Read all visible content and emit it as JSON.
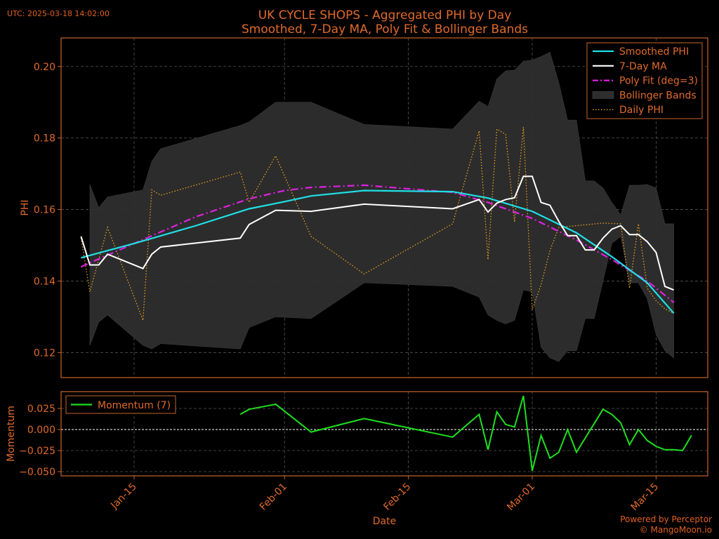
{
  "header": {
    "utc_label": "UTC: 2025-03-18 14:02:00",
    "title_line1": "UK CYCLE SHOPS - Aggregated PHI by Day",
    "title_line2": "Smoothed, 7-Day MA, Poly Fit & Bollinger Bands"
  },
  "footer": {
    "line1": "Powered by Perceptor",
    "line2": "© MangoMoon.io"
  },
  "colors": {
    "background": "#000000",
    "text": "#e06a2c",
    "axes": "#c8642a",
    "smoothed": "#1fe0e6",
    "ma": "#ffffff",
    "poly": "#e020e0",
    "band": "#2e2e2e",
    "daily": "#e8a020",
    "momentum": "#1ee01e"
  },
  "chart_data": [
    {
      "type": "line",
      "ylabel": "PHI",
      "ylim": [
        0.113,
        0.208
      ],
      "yticks": [
        "0.12",
        "0.14",
        "0.16",
        "0.18",
        "0.20"
      ],
      "grid": true,
      "legend_position": "top-right",
      "series": [
        {
          "name": "Smoothed PHI",
          "points": [
            [
              "2025-01-09",
              0.1465
            ],
            [
              "2025-01-15",
              0.1505
            ],
            [
              "2025-01-22",
              0.1555
            ],
            [
              "2025-01-28",
              0.1602
            ],
            [
              "2025-02-01",
              0.1622
            ],
            [
              "2025-02-04",
              0.1638
            ],
            [
              "2025-02-10",
              0.1653
            ],
            [
              "2025-02-20",
              0.165
            ],
            [
              "2025-02-24",
              0.1632
            ],
            [
              "2025-03-01",
              0.1595
            ],
            [
              "2025-03-06",
              0.1535
            ],
            [
              "2025-03-10",
              0.1468
            ],
            [
              "2025-03-14",
              0.1395
            ],
            [
              "2025-03-17",
              0.131
            ]
          ]
        },
        {
          "name": "7-Day MA",
          "points": [
            [
              "2025-01-09",
              0.1525
            ],
            [
              "2025-01-10",
              0.1445
            ],
            [
              "2025-01-11",
              0.1445
            ],
            [
              "2025-01-12",
              0.1475
            ],
            [
              "2025-01-16",
              0.1435
            ],
            [
              "2025-01-17",
              0.1475
            ],
            [
              "2025-01-18",
              0.1495
            ],
            [
              "2025-01-27",
              0.152
            ],
            [
              "2025-01-28",
              0.1558
            ],
            [
              "2025-01-31",
              0.1598
            ],
            [
              "2025-02-04",
              0.1595
            ],
            [
              "2025-02-10",
              0.1615
            ],
            [
              "2025-02-20",
              0.1602
            ],
            [
              "2025-02-23",
              0.1628
            ],
            [
              "2025-02-24",
              0.1593
            ],
            [
              "2025-02-25",
              0.1618
            ],
            [
              "2025-02-26",
              0.1628
            ],
            [
              "2025-02-27",
              0.1633
            ],
            [
              "2025-02-28",
              0.1693
            ],
            [
              "2025-03-01",
              0.1693
            ],
            [
              "2025-03-02",
              0.162
            ],
            [
              "2025-03-03",
              0.1612
            ],
            [
              "2025-03-04",
              0.1567
            ],
            [
              "2025-03-05",
              0.1527
            ],
            [
              "2025-03-06",
              0.1527
            ],
            [
              "2025-03-07",
              0.1487
            ],
            [
              "2025-03-08",
              0.1487
            ],
            [
              "2025-03-09",
              0.152
            ],
            [
              "2025-03-10",
              0.1545
            ],
            [
              "2025-03-11",
              0.1555
            ],
            [
              "2025-03-12",
              0.153
            ],
            [
              "2025-03-13",
              0.153
            ],
            [
              "2025-03-14",
              0.151
            ],
            [
              "2025-03-15",
              0.148
            ],
            [
              "2025-03-16",
              0.1385
            ],
            [
              "2025-03-17",
              0.1375
            ]
          ]
        },
        {
          "name": "Poly Fit (deg=3)",
          "points": [
            [
              "2025-01-09",
              0.144
            ],
            [
              "2025-01-15",
              0.1505
            ],
            [
              "2025-01-22",
              0.158
            ],
            [
              "2025-01-28",
              0.163
            ],
            [
              "2025-02-01",
              0.1653
            ],
            [
              "2025-02-04",
              0.1662
            ],
            [
              "2025-02-10",
              0.1668
            ],
            [
              "2025-02-20",
              0.1648
            ],
            [
              "2025-02-24",
              0.162
            ],
            [
              "2025-03-01",
              0.1575
            ],
            [
              "2025-03-06",
              0.1515
            ],
            [
              "2025-03-10",
              0.146
            ],
            [
              "2025-03-14",
              0.14
            ],
            [
              "2025-03-17",
              0.134
            ]
          ]
        },
        {
          "name": "Bollinger Bands",
          "upper": [
            [
              "2025-01-10",
              0.167
            ],
            [
              "2025-01-11",
              0.1605
            ],
            [
              "2025-01-12",
              0.1635
            ],
            [
              "2025-01-16",
              0.1655
            ],
            [
              "2025-01-17",
              0.1735
            ],
            [
              "2025-01-18",
              0.177
            ],
            [
              "2025-01-27",
              0.1835
            ],
            [
              "2025-01-28",
              0.1845
            ],
            [
              "2025-01-31",
              0.19
            ],
            [
              "2025-02-04",
              0.19
            ],
            [
              "2025-02-10",
              0.1838
            ],
            [
              "2025-02-20",
              0.1825
            ],
            [
              "2025-02-23",
              0.1903
            ],
            [
              "2025-02-24",
              0.1888
            ],
            [
              "2025-02-25",
              0.1965
            ],
            [
              "2025-02-26",
              0.1988
            ],
            [
              "2025-02-27",
              0.199
            ],
            [
              "2025-02-28",
              0.2015
            ],
            [
              "2025-03-01",
              0.2018
            ],
            [
              "2025-03-02",
              0.2028
            ],
            [
              "2025-03-03",
              0.204
            ],
            [
              "2025-03-04",
              0.1955
            ],
            [
              "2025-03-05",
              0.185
            ],
            [
              "2025-03-06",
              0.185
            ],
            [
              "2025-03-07",
              0.168
            ],
            [
              "2025-03-08",
              0.168
            ],
            [
              "2025-03-09",
              0.166
            ],
            [
              "2025-03-10",
              0.162
            ],
            [
              "2025-03-11",
              0.1585
            ],
            [
              "2025-03-12",
              0.1668
            ],
            [
              "2025-03-13",
              0.1668
            ],
            [
              "2025-03-14",
              0.167
            ],
            [
              "2025-03-15",
              0.166
            ],
            [
              "2025-03-16",
              0.156
            ],
            [
              "2025-03-17",
              0.156
            ]
          ],
          "lower": [
            [
              "2025-01-10",
              0.122
            ],
            [
              "2025-01-11",
              0.1285
            ],
            [
              "2025-01-12",
              0.1305
            ],
            [
              "2025-01-16",
              0.122
            ],
            [
              "2025-01-17",
              0.121
            ],
            [
              "2025-01-18",
              0.1225
            ],
            [
              "2025-01-27",
              0.121
            ],
            [
              "2025-01-28",
              0.127
            ],
            [
              "2025-01-31",
              0.13
            ],
            [
              "2025-02-04",
              0.1295
            ],
            [
              "2025-02-10",
              0.1395
            ],
            [
              "2025-02-20",
              0.1385
            ],
            [
              "2025-02-23",
              0.1355
            ],
            [
              "2025-02-24",
              0.1305
            ],
            [
              "2025-02-25",
              0.129
            ],
            [
              "2025-02-26",
              0.128
            ],
            [
              "2025-02-27",
              0.129
            ],
            [
              "2025-02-28",
              0.1375
            ],
            [
              "2025-03-01",
              0.137
            ],
            [
              "2025-03-02",
              0.1215
            ],
            [
              "2025-03-03",
              0.1185
            ],
            [
              "2025-03-04",
              0.1175
            ],
            [
              "2025-03-05",
              0.1205
            ],
            [
              "2025-03-06",
              0.1205
            ],
            [
              "2025-03-07",
              0.1295
            ],
            [
              "2025-03-08",
              0.1295
            ],
            [
              "2025-03-09",
              0.14
            ],
            [
              "2025-03-10",
              0.1505
            ],
            [
              "2025-03-11",
              0.1525
            ],
            [
              "2025-03-12",
              0.1395
            ],
            [
              "2025-03-13",
              0.1395
            ],
            [
              "2025-03-14",
              0.135
            ],
            [
              "2025-03-15",
              0.125
            ],
            [
              "2025-03-16",
              0.1205
            ],
            [
              "2025-03-17",
              0.1185
            ]
          ]
        },
        {
          "name": "Daily PHI",
          "points": [
            [
              "2025-01-09",
              0.152
            ],
            [
              "2025-01-10",
              0.137
            ],
            [
              "2025-01-12",
              0.155
            ],
            [
              "2025-01-16",
              0.129
            ],
            [
              "2025-01-17",
              0.1655
            ],
            [
              "2025-01-18",
              0.164
            ],
            [
              "2025-01-27",
              0.1705
            ],
            [
              "2025-01-28",
              0.162
            ],
            [
              "2025-01-31",
              0.175
            ],
            [
              "2025-02-04",
              0.1525
            ],
            [
              "2025-02-10",
              0.142
            ],
            [
              "2025-02-20",
              0.156
            ],
            [
              "2025-02-23",
              0.182
            ],
            [
              "2025-02-24",
              0.146
            ],
            [
              "2025-02-25",
              0.1825
            ],
            [
              "2025-02-26",
              0.181
            ],
            [
              "2025-02-27",
              0.1565
            ],
            [
              "2025-02-28",
              0.183
            ],
            [
              "2025-03-01",
              0.132
            ],
            [
              "2025-03-02",
              0.139
            ],
            [
              "2025-03-03",
              0.1485
            ],
            [
              "2025-03-04",
              0.155
            ],
            [
              "2025-03-06",
              0.1555
            ],
            [
              "2025-03-09",
              0.1562
            ],
            [
              "2025-03-11",
              0.156
            ],
            [
              "2025-03-12",
              0.138
            ],
            [
              "2025-03-13",
              0.156
            ],
            [
              "2025-03-14",
              0.138
            ],
            [
              "2025-03-15",
              0.1345
            ],
            [
              "2025-03-16",
              0.1322
            ],
            [
              "2025-03-17",
              0.131
            ]
          ]
        }
      ]
    },
    {
      "type": "line",
      "xlabel": "Date",
      "ylabel": "Momentum",
      "ylim": [
        -0.055,
        0.045
      ],
      "yticks": [
        "0.025",
        "0.000",
        "−0.025",
        "−0.050"
      ],
      "zero_line": true,
      "grid": true,
      "legend_position": "top-left",
      "xticks": [
        {
          "date": "2025-01-15",
          "label": "Jan-15"
        },
        {
          "date": "2025-02-01",
          "label": "Feb-01"
        },
        {
          "date": "2025-02-15",
          "label": "Feb-15"
        },
        {
          "date": "2025-03-01",
          "label": "Mar-01"
        },
        {
          "date": "2025-03-15",
          "label": "Mar-15"
        }
      ],
      "series": [
        {
          "name": "Momentum (7)",
          "points": [
            [
              "2025-01-27",
              0.018
            ],
            [
              "2025-01-28",
              0.024
            ],
            [
              "2025-01-31",
              0.03
            ],
            [
              "2025-02-04",
              -0.003
            ],
            [
              "2025-02-10",
              0.013
            ],
            [
              "2025-02-20",
              -0.009
            ],
            [
              "2025-02-23",
              0.018
            ],
            [
              "2025-02-24",
              -0.024
            ],
            [
              "2025-02-25",
              0.021
            ],
            [
              "2025-02-26",
              0.006
            ],
            [
              "2025-02-27",
              0.003
            ],
            [
              "2025-02-28",
              0.04
            ],
            [
              "2025-03-01",
              -0.049
            ],
            [
              "2025-03-02",
              -0.007
            ],
            [
              "2025-03-03",
              -0.034
            ],
            [
              "2025-03-04",
              -0.027
            ],
            [
              "2025-03-05",
              0.0
            ],
            [
              "2025-03-06",
              -0.027
            ],
            [
              "2025-03-09",
              0.024
            ],
            [
              "2025-03-10",
              0.018
            ],
            [
              "2025-03-11",
              0.008
            ],
            [
              "2025-03-12",
              -0.018
            ],
            [
              "2025-03-13",
              0.0
            ],
            [
              "2025-03-14",
              -0.013
            ],
            [
              "2025-03-15",
              -0.02
            ],
            [
              "2025-03-16",
              -0.024
            ],
            [
              "2025-03-17",
              -0.024
            ],
            [
              "2025-03-18",
              -0.025
            ],
            [
              "2025-03-19",
              -0.007
            ]
          ]
        }
      ]
    }
  ]
}
